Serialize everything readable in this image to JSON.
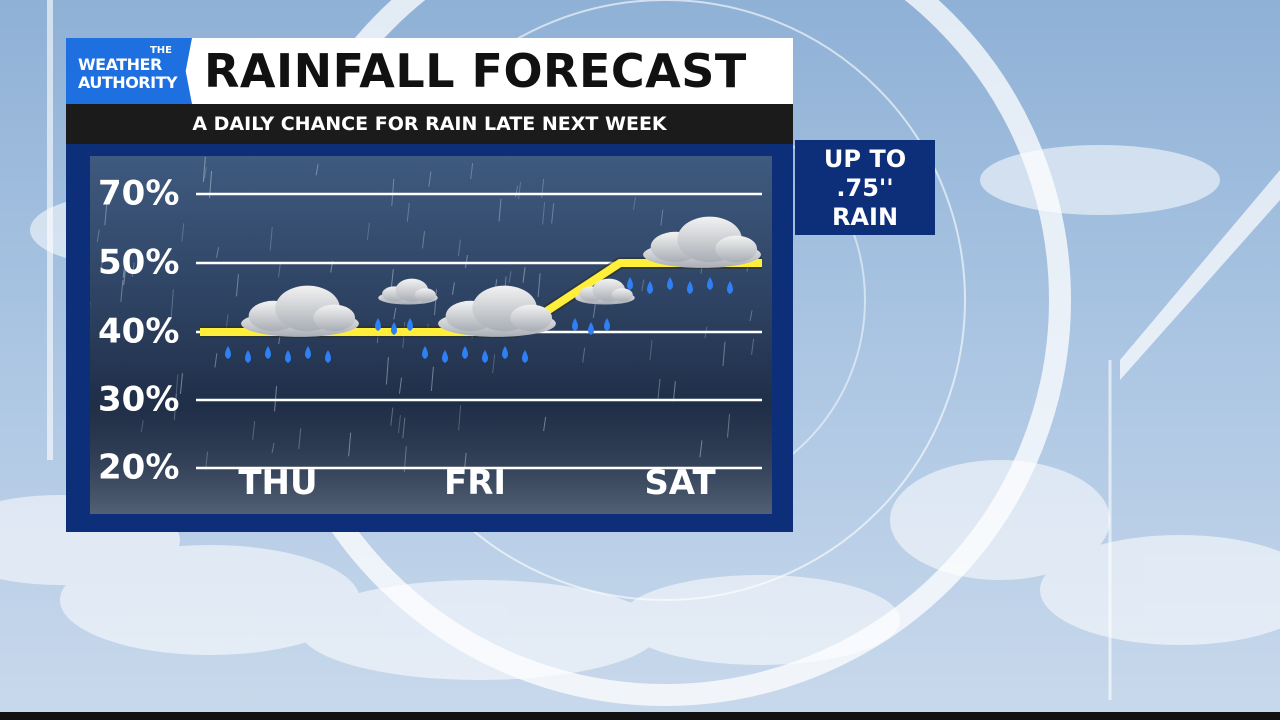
{
  "logo": {
    "line1": "THE",
    "line2": "WEATHER",
    "line3": "AUTHORITY"
  },
  "title": "RAINFALL FORECAST",
  "subtitle": "A DAILY CHANCE FOR RAIN LATE NEXT WEEK",
  "callout": {
    "line1": "UP TO",
    "line2": ".75''",
    "line3": "RAIN"
  },
  "colors": {
    "panel": "#0d2f7a",
    "logo": "#1e6fe0",
    "trend_line": "#ffef3a",
    "rain_drops": "#2f7ff5"
  },
  "chart_data": {
    "type": "line",
    "categories": [
      "THU",
      "FRI",
      "SAT"
    ],
    "values": [
      40,
      40,
      50
    ],
    "yticks": [
      "70%",
      "50%",
      "40%",
      "30%",
      "20%"
    ],
    "ytick_values": [
      70,
      50,
      40,
      30,
      20
    ],
    "grid": true,
    "icons": [
      "rain-cloud-icon",
      "rain-cloud-icon",
      "rain-cloud-icon"
    ]
  }
}
